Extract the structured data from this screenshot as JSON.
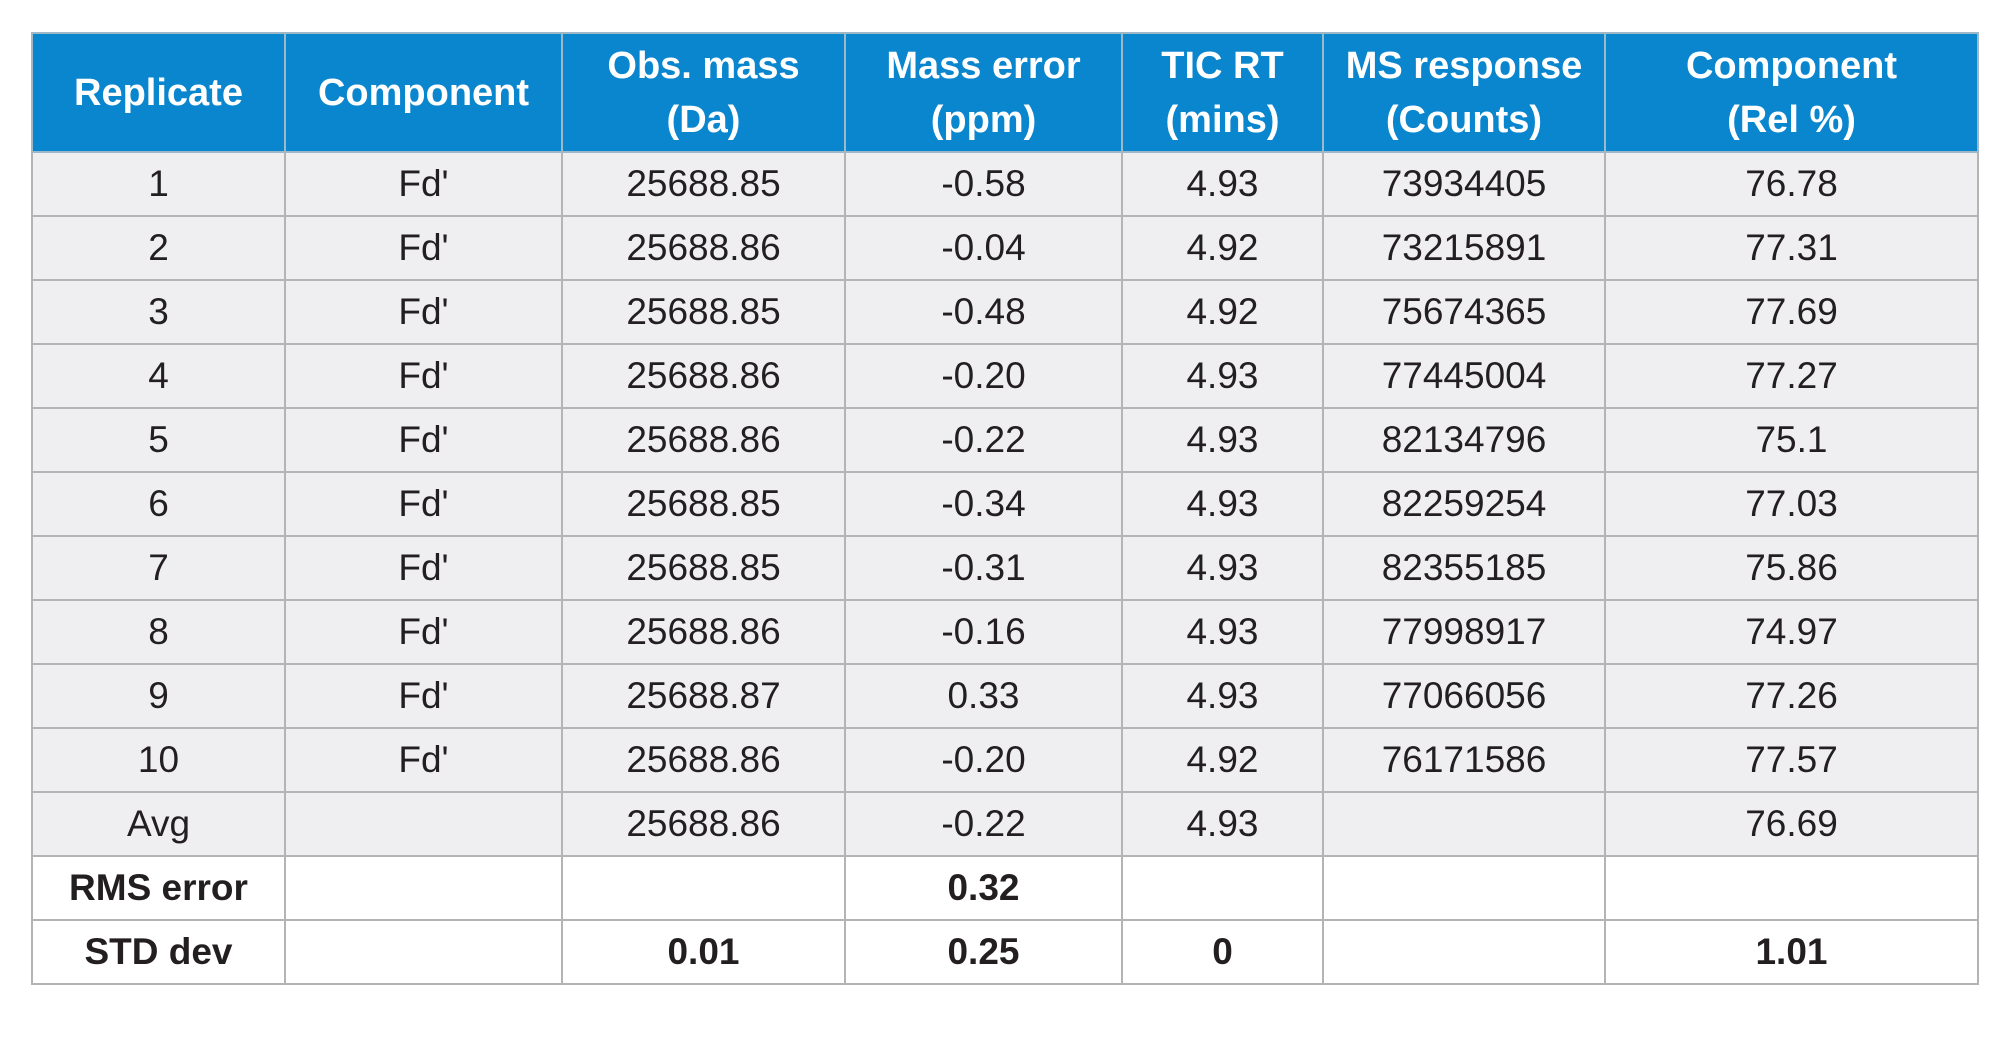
{
  "columns": [
    {
      "lines": [
        "Replicate"
      ]
    },
    {
      "lines": [
        "Component"
      ]
    },
    {
      "lines": [
        "Obs. mass",
        "(Da)"
      ]
    },
    {
      "lines": [
        "Mass error",
        "(ppm)"
      ]
    },
    {
      "lines": [
        "TIC RT",
        "(mins)"
      ]
    },
    {
      "lines": [
        "MS response",
        "(Counts)"
      ]
    },
    {
      "lines": [
        "Component",
        "(Rel %)"
      ]
    }
  ],
  "rows": [
    {
      "style": "shade",
      "cells": [
        "1",
        "Fd'",
        "25688.85",
        "-0.58",
        "4.93",
        "73934405",
        "76.78"
      ]
    },
    {
      "style": "shade",
      "cells": [
        "2",
        "Fd'",
        "25688.86",
        "-0.04",
        "4.92",
        "73215891",
        "77.31"
      ]
    },
    {
      "style": "shade",
      "cells": [
        "3",
        "Fd'",
        "25688.85",
        "-0.48",
        "4.92",
        "75674365",
        "77.69"
      ]
    },
    {
      "style": "shade",
      "cells": [
        "4",
        "Fd'",
        "25688.86",
        "-0.20",
        "4.93",
        "77445004",
        "77.27"
      ]
    },
    {
      "style": "shade",
      "cells": [
        "5",
        "Fd'",
        "25688.86",
        "-0.22",
        "4.93",
        "82134796",
        "75.1"
      ]
    },
    {
      "style": "shade",
      "cells": [
        "6",
        "Fd'",
        "25688.85",
        "-0.34",
        "4.93",
        "82259254",
        "77.03"
      ]
    },
    {
      "style": "shade",
      "cells": [
        "7",
        "Fd'",
        "25688.85",
        "-0.31",
        "4.93",
        "82355185",
        "75.86"
      ]
    },
    {
      "style": "shade",
      "cells": [
        "8",
        "Fd'",
        "25688.86",
        "-0.16",
        "4.93",
        "77998917",
        "74.97"
      ]
    },
    {
      "style": "shade",
      "cells": [
        "9",
        "Fd'",
        "25688.87",
        "0.33",
        "4.93",
        "77066056",
        "77.26"
      ]
    },
    {
      "style": "shade",
      "cells": [
        "10",
        "Fd'",
        "25688.86",
        "-0.20",
        "4.92",
        "76171586",
        "77.57"
      ]
    },
    {
      "style": "shade",
      "cells": [
        "Avg",
        "",
        "25688.86",
        "-0.22",
        "4.93",
        "",
        "76.69"
      ]
    },
    {
      "style": "plain bold",
      "cells": [
        "RMS error",
        "",
        "",
        "0.32",
        "",
        "",
        ""
      ]
    },
    {
      "style": "plain bold",
      "cells": [
        "STD dev",
        "",
        "0.01",
        "0.25",
        "0",
        "",
        "1.01"
      ]
    }
  ],
  "colors": {
    "header_bg": "#0a86cf",
    "header_text": "#ffffff",
    "row_shade": "#efeff1",
    "grid": "#b4b4b4",
    "text": "#231f20"
  }
}
